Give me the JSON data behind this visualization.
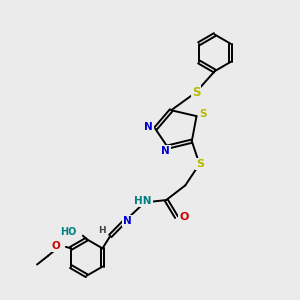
{
  "bg_color": "#ebebeb",
  "bond_color": "#000000",
  "bond_width": 1.4,
  "S_color": "#b8b800",
  "N_color": "#0000cc",
  "O_color": "#cc0000",
  "teal_color": "#008080",
  "figsize": [
    3.0,
    3.0
  ],
  "dpi": 100,
  "xlim": [
    0,
    10
  ],
  "ylim": [
    0,
    10
  ]
}
